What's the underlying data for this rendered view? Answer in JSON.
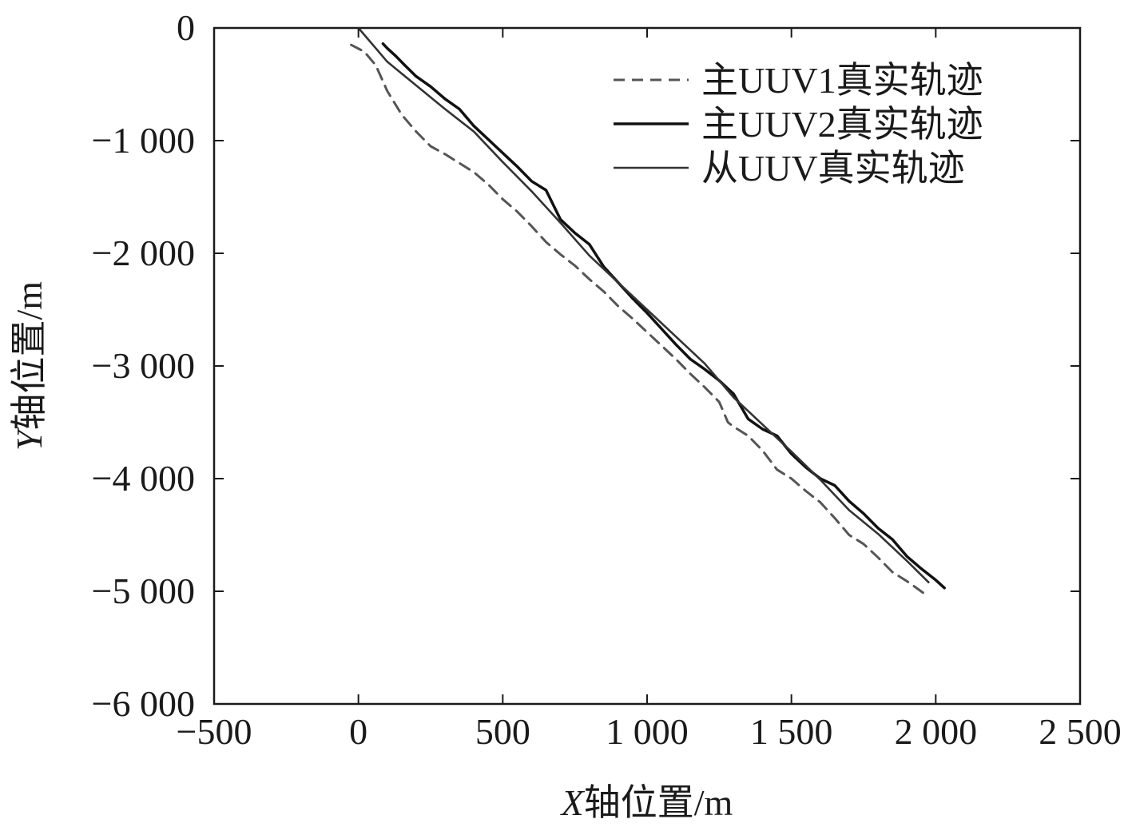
{
  "chart_data": {
    "type": "line",
    "xlabel_italic": "X",
    "xlabel_rest": "轴位置/m",
    "ylabel_italic": "Y",
    "ylabel_rest": "轴位置/m",
    "xlim": [
      -500,
      2500
    ],
    "ylim": [
      -6000,
      0
    ],
    "xticks": [
      -500,
      0,
      500,
      1000,
      1500,
      2000,
      2500
    ],
    "xtick_labels": [
      "−500",
      "0",
      "500",
      "1 000",
      "1 500",
      "2 000",
      "2 500"
    ],
    "yticks": [
      0,
      -1000,
      -2000,
      -3000,
      -4000,
      -5000,
      -6000
    ],
    "ytick_labels": [
      "0",
      "−1 000",
      "−2 000",
      "−3 000",
      "−4 000",
      "−5 000",
      "−6 000"
    ],
    "legend_position": "top-right",
    "series": [
      {
        "name": "主UUV1真实轨迹",
        "style": "dashed",
        "color": "#555555",
        "x": [
          -25,
          20,
          60,
          100,
          150,
          200,
          250,
          300,
          350,
          400,
          450,
          500,
          550,
          600,
          650,
          700,
          750,
          800,
          850,
          900,
          950,
          1000,
          1050,
          1100,
          1150,
          1200,
          1250,
          1280,
          1300,
          1350,
          1400,
          1450,
          1500,
          1550,
          1600,
          1650,
          1700,
          1750,
          1800,
          1850,
          1900,
          1960
        ],
        "y": [
          -150,
          -210,
          -330,
          -560,
          -770,
          -920,
          -1050,
          -1120,
          -1200,
          -1280,
          -1390,
          -1520,
          -1630,
          -1760,
          -1900,
          -2010,
          -2110,
          -2230,
          -2340,
          -2470,
          -2580,
          -2700,
          -2820,
          -2940,
          -3070,
          -3190,
          -3320,
          -3500,
          -3540,
          -3620,
          -3750,
          -3920,
          -4000,
          -4110,
          -4210,
          -4350,
          -4500,
          -4580,
          -4700,
          -4830,
          -4910,
          -5020
        ]
      },
      {
        "name": "主UUV2真实轨迹",
        "style": "solid",
        "color": "#111111",
        "x": [
          85,
          100,
          130,
          160,
          200,
          250,
          300,
          350,
          400,
          450,
          500,
          550,
          600,
          650,
          700,
          750,
          800,
          850,
          900,
          950,
          1000,
          1050,
          1100,
          1150,
          1200,
          1250,
          1300,
          1350,
          1400,
          1450,
          1500,
          1550,
          1600,
          1650,
          1700,
          1750,
          1800,
          1850,
          1900,
          1950,
          2000,
          2030
        ],
        "y": [
          -140,
          -180,
          -250,
          -330,
          -430,
          -520,
          -630,
          -720,
          -870,
          -990,
          -1110,
          -1230,
          -1360,
          -1440,
          -1700,
          -1820,
          -1920,
          -2120,
          -2260,
          -2400,
          -2530,
          -2670,
          -2810,
          -2940,
          -3030,
          -3130,
          -3250,
          -3470,
          -3560,
          -3620,
          -3780,
          -3900,
          -4000,
          -4060,
          -4200,
          -4310,
          -4440,
          -4540,
          -4690,
          -4800,
          -4900,
          -4970
        ]
      },
      {
        "name": "从UUV真实轨迹",
        "style": "solid",
        "color": "#333333",
        "x": [
          0,
          100,
          200,
          300,
          400,
          500,
          600,
          700,
          800,
          900,
          1000,
          1100,
          1200,
          1300,
          1400,
          1500,
          1600,
          1700,
          1800,
          1900,
          1975
        ],
        "y": [
          0,
          -300,
          -510,
          -720,
          -920,
          -1190,
          -1450,
          -1730,
          -2020,
          -2260,
          -2500,
          -2740,
          -2980,
          -3280,
          -3520,
          -3760,
          -4010,
          -4280,
          -4490,
          -4730,
          -4920
        ]
      }
    ]
  }
}
